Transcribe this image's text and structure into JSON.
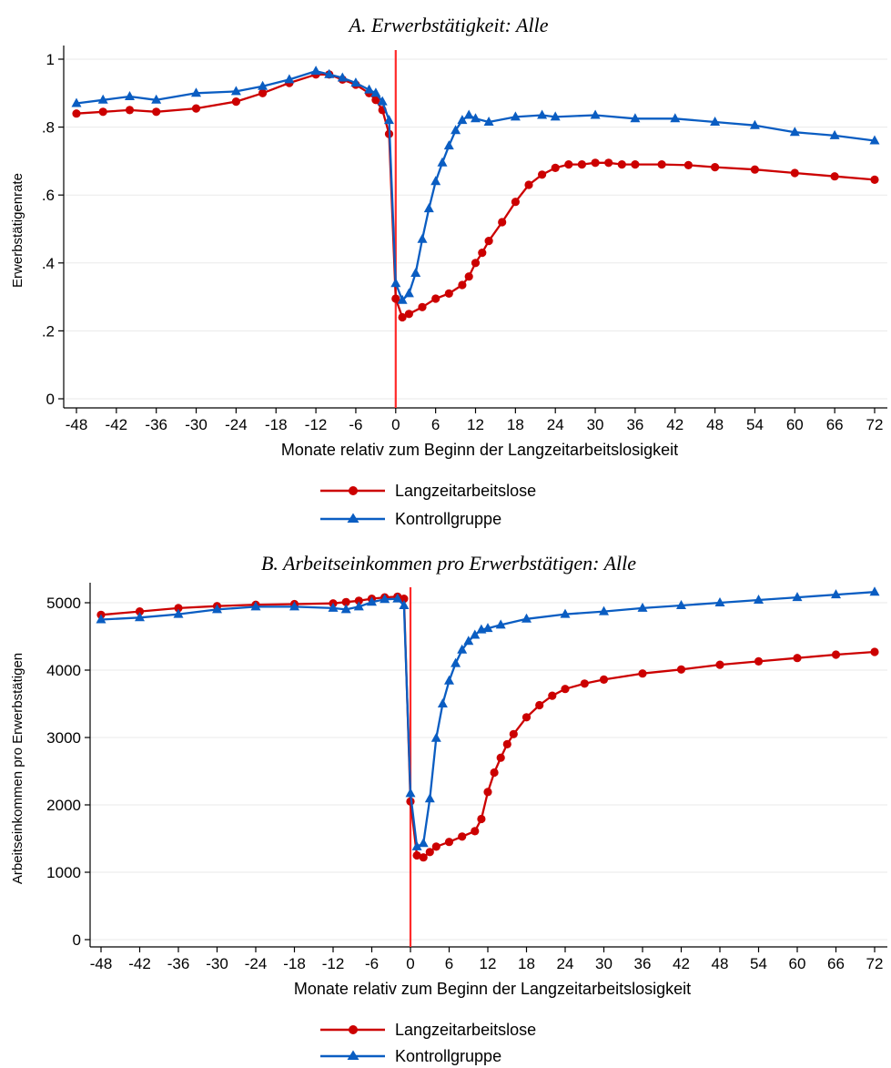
{
  "chart_data": [
    {
      "type": "line",
      "title": "A. Erwerbstätigkeit: Alle",
      "xlabel": "Monate relativ zum Beginn der Langzeitarbeitslosigkeit",
      "ylabel": "Erwerbstätigenrate",
      "xlim": [
        -48,
        72
      ],
      "ylim": [
        0,
        1
      ],
      "xticks": [
        "-48",
        "-42",
        "-36",
        "-30",
        "-24",
        "-18",
        "-12",
        "-6",
        "0",
        "6",
        "12",
        "18",
        "24",
        "30",
        "36",
        "42",
        "48",
        "54",
        "60",
        "66",
        "72"
      ],
      "yticks": [
        "0",
        ".2",
        ".4",
        ".6",
        ".8",
        "1"
      ],
      "vline_x": 0,
      "grid": true,
      "legend_position": "bottom",
      "series": [
        {
          "name": "Langzeitarbeitslose",
          "color": "#cc0000",
          "marker": "circle",
          "x": [
            -48,
            -44,
            -40,
            -36,
            -30,
            -24,
            -20,
            -16,
            -12,
            -10,
            -8,
            -6,
            -4,
            -3,
            -2,
            -1,
            0,
            1,
            2,
            4,
            6,
            8,
            10,
            11,
            12,
            13,
            14,
            16,
            18,
            20,
            22,
            24,
            26,
            28,
            30,
            32,
            34,
            36,
            40,
            44,
            48,
            54,
            60,
            66,
            72
          ],
          "values": [
            0.84,
            0.845,
            0.85,
            0.845,
            0.855,
            0.875,
            0.9,
            0.93,
            0.955,
            0.955,
            0.94,
            0.925,
            0.9,
            0.88,
            0.85,
            0.78,
            0.295,
            0.24,
            0.25,
            0.27,
            0.295,
            0.31,
            0.335,
            0.36,
            0.4,
            0.43,
            0.465,
            0.52,
            0.58,
            0.63,
            0.66,
            0.68,
            0.69,
            0.69,
            0.695,
            0.695,
            0.69,
            0.69,
            0.69,
            0.688,
            0.682,
            0.675,
            0.665,
            0.655,
            0.645
          ]
        },
        {
          "name": "Kontrollgruppe",
          "color": "#0a5dc2",
          "marker": "triangle",
          "x": [
            -48,
            -44,
            -40,
            -36,
            -30,
            -24,
            -20,
            -16,
            -12,
            -10,
            -8,
            -6,
            -4,
            -3,
            -2,
            -1,
            0,
            1,
            2,
            3,
            4,
            5,
            6,
            7,
            8,
            9,
            10,
            11,
            12,
            14,
            18,
            22,
            24,
            30,
            36,
            42,
            48,
            54,
            60,
            66,
            72
          ],
          "values": [
            0.87,
            0.88,
            0.89,
            0.88,
            0.9,
            0.905,
            0.92,
            0.94,
            0.965,
            0.955,
            0.945,
            0.93,
            0.91,
            0.9,
            0.875,
            0.82,
            0.34,
            0.29,
            0.31,
            0.37,
            0.47,
            0.56,
            0.64,
            0.695,
            0.745,
            0.79,
            0.82,
            0.835,
            0.825,
            0.815,
            0.83,
            0.835,
            0.83,
            0.835,
            0.825,
            0.825,
            0.815,
            0.805,
            0.785,
            0.775,
            0.76
          ]
        }
      ]
    },
    {
      "type": "line",
      "title": "B. Arbeitseinkommen pro Erwerbstätigen: Alle",
      "xlabel": "Monate relativ zum Beginn der Langzeitarbeitslosigkeit",
      "ylabel": "Arbeitseinkommen pro Erwerbstätigen",
      "xlim": [
        -48,
        72
      ],
      "ylim": [
        0,
        5000
      ],
      "xticks": [
        "-48",
        "-42",
        "-36",
        "-30",
        "-24",
        "-18",
        "-12",
        "-6",
        "0",
        "6",
        "12",
        "18",
        "24",
        "30",
        "36",
        "42",
        "48",
        "54",
        "60",
        "66",
        "72"
      ],
      "yticks": [
        "0",
        "1000",
        "2000",
        "3000",
        "4000",
        "5000"
      ],
      "vline_x": 0,
      "grid": true,
      "legend_position": "bottom",
      "series": [
        {
          "name": "Langzeitarbeitslose",
          "color": "#cc0000",
          "marker": "circle",
          "x": [
            -48,
            -42,
            -36,
            -30,
            -24,
            -18,
            -12,
            -10,
            -8,
            -6,
            -4,
            -2,
            -1,
            0,
            1,
            2,
            3,
            4,
            6,
            8,
            10,
            11,
            12,
            13,
            14,
            15,
            16,
            18,
            20,
            22,
            24,
            27,
            30,
            36,
            42,
            48,
            54,
            60,
            66,
            72
          ],
          "values": [
            4820,
            4870,
            4920,
            4950,
            4970,
            4980,
            4990,
            5010,
            5030,
            5060,
            5080,
            5090,
            5060,
            2050,
            1250,
            1220,
            1300,
            1380,
            1450,
            1530,
            1610,
            1790,
            2190,
            2480,
            2700,
            2900,
            3050,
            3300,
            3480,
            3620,
            3720,
            3800,
            3860,
            3950,
            4010,
            4080,
            4130,
            4180,
            4230,
            4270
          ]
        },
        {
          "name": "Kontrollgruppe",
          "color": "#0a5dc2",
          "marker": "triangle",
          "x": [
            -48,
            -42,
            -36,
            -30,
            -24,
            -18,
            -12,
            -10,
            -8,
            -6,
            -4,
            -2,
            -1,
            0,
            1,
            2,
            3,
            4,
            5,
            6,
            7,
            8,
            9,
            10,
            11,
            12,
            14,
            18,
            24,
            30,
            36,
            42,
            48,
            54,
            60,
            66,
            72
          ],
          "values": [
            4750,
            4780,
            4830,
            4900,
            4940,
            4940,
            4920,
            4900,
            4940,
            5010,
            5050,
            5060,
            4960,
            2170,
            1380,
            1430,
            2090,
            2990,
            3500,
            3840,
            4100,
            4300,
            4430,
            4520,
            4600,
            4620,
            4670,
            4760,
            4830,
            4870,
            4920,
            4960,
            5000,
            5040,
            5080,
            5120,
            5160
          ]
        }
      ]
    }
  ]
}
